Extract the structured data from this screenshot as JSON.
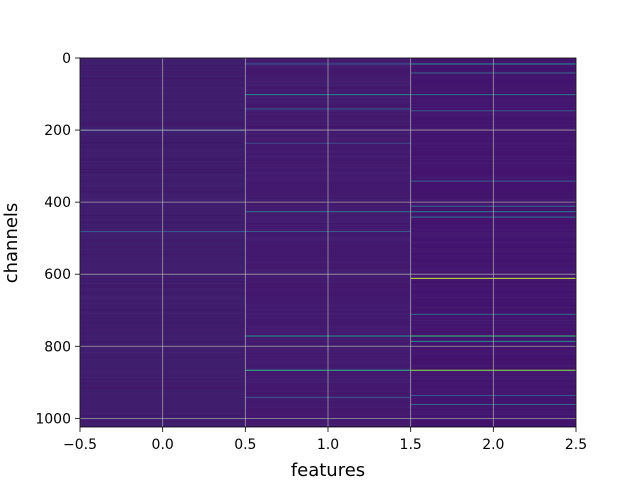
{
  "chart_data": {
    "type": "heatmap",
    "title": "",
    "xlabel": "features",
    "ylabel": "channels",
    "xlim": [
      -0.5,
      2.5
    ],
    "ylim": [
      1024,
      0
    ],
    "x_inverted": false,
    "y_inverted": true,
    "grid": true,
    "colormap": "viridis",
    "x_ticks": [
      -0.5,
      0.0,
      0.5,
      1.0,
      1.5,
      2.0,
      2.5
    ],
    "x_tick_labels": [
      "−0.5",
      "0.0",
      "0.5",
      "1.0",
      "1.5",
      "2.0",
      "2.5"
    ],
    "y_ticks": [
      0,
      200,
      400,
      600,
      800,
      1000
    ],
    "y_tick_labels": [
      "0",
      "200",
      "400",
      "600",
      "800",
      "1000"
    ],
    "columns": [
      0,
      1,
      2
    ],
    "n_channels": 1024,
    "background_level": [
      0.04,
      0.06,
      0.05
    ],
    "background_colors": [
      "#3f1e6e",
      "#43196f",
      "#43146f"
    ],
    "highlighted_rows": [
      {
        "column": 0,
        "channel": 200,
        "value": 0.25
      },
      {
        "column": 0,
        "channel": 480,
        "value": 0.3
      },
      {
        "column": 1,
        "channel": 15,
        "value": 0.3
      },
      {
        "column": 1,
        "channel": 100,
        "value": 0.5
      },
      {
        "column": 1,
        "channel": 140,
        "value": 0.3
      },
      {
        "column": 1,
        "channel": 235,
        "value": 0.25
      },
      {
        "column": 1,
        "channel": 425,
        "value": 0.4
      },
      {
        "column": 1,
        "channel": 480,
        "value": 0.3
      },
      {
        "column": 1,
        "channel": 770,
        "value": 0.55
      },
      {
        "column": 1,
        "channel": 865,
        "value": 0.7
      },
      {
        "column": 1,
        "channel": 940,
        "value": 0.3
      },
      {
        "column": 2,
        "channel": 15,
        "value": 0.5
      },
      {
        "column": 2,
        "channel": 40,
        "value": 0.35
      },
      {
        "column": 2,
        "channel": 100,
        "value": 0.4
      },
      {
        "column": 2,
        "channel": 145,
        "value": 0.3
      },
      {
        "column": 2,
        "channel": 340,
        "value": 0.3
      },
      {
        "column": 2,
        "channel": 410,
        "value": 0.35
      },
      {
        "column": 2,
        "channel": 425,
        "value": 0.45
      },
      {
        "column": 2,
        "channel": 440,
        "value": 0.4
      },
      {
        "column": 2,
        "channel": 610,
        "value": 0.95
      },
      {
        "column": 2,
        "channel": 710,
        "value": 0.35
      },
      {
        "column": 2,
        "channel": 770,
        "value": 0.75
      },
      {
        "column": 2,
        "channel": 785,
        "value": 0.5
      },
      {
        "column": 2,
        "channel": 865,
        "value": 0.9
      },
      {
        "column": 2,
        "channel": 935,
        "value": 0.3
      },
      {
        "column": 2,
        "channel": 960,
        "value": 0.35
      }
    ]
  }
}
